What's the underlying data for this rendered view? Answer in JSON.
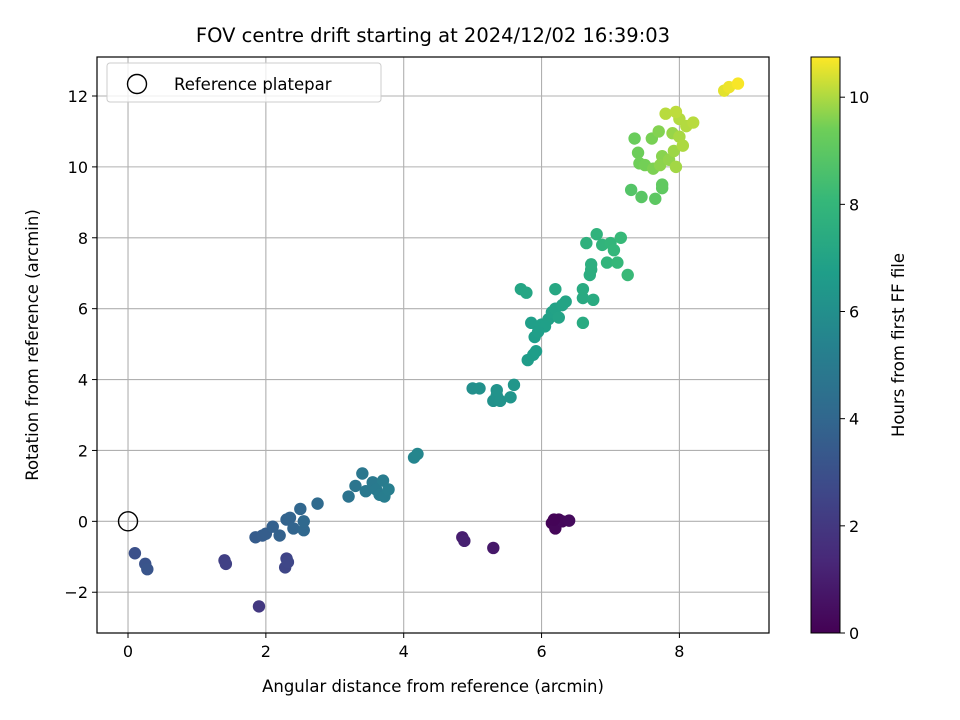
{
  "chart_data": {
    "type": "scatter",
    "title": "FOV centre drift starting at 2024/12/02 16:39:03",
    "xlabel": "Angular distance from reference (arcmin)",
    "ylabel": "Rotation from reference (arcmin)",
    "xlim": [
      -0.45,
      9.3
    ],
    "ylim": [
      -3.15,
      13.1
    ],
    "xticks": [
      0,
      2,
      4,
      6,
      8
    ],
    "yticks": [
      -2,
      0,
      2,
      4,
      6,
      8,
      10,
      12
    ],
    "xtick_labels": [
      "0",
      "2",
      "4",
      "6",
      "8"
    ],
    "ytick_labels": [
      "−2",
      "0",
      "2",
      "4",
      "6",
      "8",
      "10",
      "12"
    ],
    "grid": true,
    "colormap": "viridis",
    "colorbar": {
      "label": "Hours from first FF file",
      "min": 0,
      "max": 10.75,
      "ticks": [
        0,
        2,
        4,
        6,
        8,
        10
      ],
      "tick_labels": [
        "0",
        "2",
        "4",
        "6",
        "8",
        "10"
      ]
    },
    "legend": {
      "position": "upper left",
      "entries": [
        "Reference platepar"
      ]
    },
    "reference_point": {
      "x": 0,
      "y": 0,
      "label": "Reference platepar"
    },
    "series": [
      {
        "points": [
          {
            "x": 6.2,
            "y": 0.0,
            "t": 0.0
          },
          {
            "x": 6.15,
            "y": -0.05,
            "t": 0.1
          },
          {
            "x": 6.25,
            "y": 0.05,
            "t": 0.15
          },
          {
            "x": 6.2,
            "y": -0.2,
            "t": 0.2
          },
          {
            "x": 6.3,
            "y": 0.0,
            "t": 0.25
          },
          {
            "x": 6.4,
            "y": 0.02,
            "t": 0.3
          },
          {
            "x": 6.18,
            "y": 0.05,
            "t": 0.1
          },
          {
            "x": 5.3,
            "y": -0.75,
            "t": 0.8
          },
          {
            "x": 4.85,
            "y": -0.45,
            "t": 1.0
          },
          {
            "x": 4.88,
            "y": -0.55,
            "t": 1.1
          },
          {
            "x": 1.9,
            "y": -2.4,
            "t": 2.0
          },
          {
            "x": 1.4,
            "y": -1.1,
            "t": 2.3
          },
          {
            "x": 1.42,
            "y": -1.2,
            "t": 2.35
          },
          {
            "x": 2.3,
            "y": -1.05,
            "t": 2.5
          },
          {
            "x": 2.28,
            "y": -1.3,
            "t": 2.55
          },
          {
            "x": 2.32,
            "y": -1.15,
            "t": 2.6
          },
          {
            "x": 0.1,
            "y": -0.9,
            "t": 3.0
          },
          {
            "x": 0.25,
            "y": -1.2,
            "t": 3.1
          },
          {
            "x": 0.28,
            "y": -1.35,
            "t": 3.2
          },
          {
            "x": 1.85,
            "y": -0.45,
            "t": 3.5
          },
          {
            "x": 1.95,
            "y": -0.4,
            "t": 3.55
          },
          {
            "x": 2.0,
            "y": -0.35,
            "t": 3.6
          },
          {
            "x": 2.1,
            "y": -0.15,
            "t": 3.7
          },
          {
            "x": 2.2,
            "y": -0.4,
            "t": 3.75
          },
          {
            "x": 2.3,
            "y": 0.05,
            "t": 3.8
          },
          {
            "x": 2.35,
            "y": 0.1,
            "t": 3.85
          },
          {
            "x": 2.4,
            "y": -0.2,
            "t": 3.9
          },
          {
            "x": 2.5,
            "y": 0.35,
            "t": 4.0
          },
          {
            "x": 2.55,
            "y": -0.25,
            "t": 4.05
          },
          {
            "x": 2.55,
            "y": 0.0,
            "t": 4.1
          },
          {
            "x": 2.75,
            "y": 0.5,
            "t": 4.2
          },
          {
            "x": 3.2,
            "y": 0.7,
            "t": 4.6
          },
          {
            "x": 3.3,
            "y": 1.0,
            "t": 4.7
          },
          {
            "x": 3.4,
            "y": 1.35,
            "t": 4.8
          },
          {
            "x": 3.45,
            "y": 0.85,
            "t": 4.85
          },
          {
            "x": 3.55,
            "y": 1.1,
            "t": 4.9
          },
          {
            "x": 3.6,
            "y": 0.9,
            "t": 4.95
          },
          {
            "x": 3.65,
            "y": 0.75,
            "t": 5.0
          },
          {
            "x": 3.7,
            "y": 1.15,
            "t": 5.05
          },
          {
            "x": 3.72,
            "y": 0.7,
            "t": 5.1
          },
          {
            "x": 3.78,
            "y": 0.9,
            "t": 5.15
          },
          {
            "x": 4.15,
            "y": 1.8,
            "t": 5.5
          },
          {
            "x": 4.2,
            "y": 1.9,
            "t": 5.55
          },
          {
            "x": 5.0,
            "y": 3.75,
            "t": 6.0
          },
          {
            "x": 5.1,
            "y": 3.75,
            "t": 6.05
          },
          {
            "x": 5.3,
            "y": 3.4,
            "t": 6.1
          },
          {
            "x": 5.35,
            "y": 3.55,
            "t": 6.15
          },
          {
            "x": 5.4,
            "y": 3.4,
            "t": 6.2
          },
          {
            "x": 5.35,
            "y": 3.7,
            "t": 6.2
          },
          {
            "x": 5.55,
            "y": 3.5,
            "t": 6.3
          },
          {
            "x": 5.6,
            "y": 3.85,
            "t": 6.35
          },
          {
            "x": 5.8,
            "y": 4.55,
            "t": 6.6
          },
          {
            "x": 5.88,
            "y": 4.7,
            "t": 6.65
          },
          {
            "x": 5.92,
            "y": 4.8,
            "t": 6.7
          },
          {
            "x": 5.9,
            "y": 5.2,
            "t": 6.72
          },
          {
            "x": 5.85,
            "y": 5.6,
            "t": 6.75
          },
          {
            "x": 6.0,
            "y": 5.55,
            "t": 6.8
          },
          {
            "x": 6.1,
            "y": 5.7,
            "t": 6.85
          },
          {
            "x": 6.15,
            "y": 5.9,
            "t": 6.9
          },
          {
            "x": 6.2,
            "y": 6.0,
            "t": 6.95
          },
          {
            "x": 6.25,
            "y": 5.75,
            "t": 7.0
          },
          {
            "x": 6.3,
            "y": 6.1,
            "t": 7.0
          },
          {
            "x": 6.35,
            "y": 6.2,
            "t": 7.05
          },
          {
            "x": 6.05,
            "y": 5.5,
            "t": 6.8
          },
          {
            "x": 5.95,
            "y": 5.35,
            "t": 6.75
          },
          {
            "x": 5.7,
            "y": 6.55,
            "t": 7.1
          },
          {
            "x": 5.78,
            "y": 6.45,
            "t": 7.15
          },
          {
            "x": 6.2,
            "y": 6.55,
            "t": 7.2
          },
          {
            "x": 6.6,
            "y": 6.3,
            "t": 7.3
          },
          {
            "x": 6.6,
            "y": 6.55,
            "t": 7.35
          },
          {
            "x": 6.6,
            "y": 5.6,
            "t": 7.35
          },
          {
            "x": 6.75,
            "y": 6.25,
            "t": 7.4
          },
          {
            "x": 6.7,
            "y": 6.95,
            "t": 7.5
          },
          {
            "x": 6.72,
            "y": 7.1,
            "t": 7.55
          },
          {
            "x": 6.72,
            "y": 7.25,
            "t": 7.6
          },
          {
            "x": 6.65,
            "y": 7.85,
            "t": 7.7
          },
          {
            "x": 6.8,
            "y": 8.1,
            "t": 7.8
          },
          {
            "x": 6.88,
            "y": 7.8,
            "t": 7.85
          },
          {
            "x": 6.95,
            "y": 7.3,
            "t": 7.9
          },
          {
            "x": 7.0,
            "y": 7.85,
            "t": 7.95
          },
          {
            "x": 7.05,
            "y": 7.65,
            "t": 8.0
          },
          {
            "x": 7.1,
            "y": 7.3,
            "t": 8.05
          },
          {
            "x": 7.15,
            "y": 8.0,
            "t": 8.1
          },
          {
            "x": 7.25,
            "y": 6.95,
            "t": 8.15
          },
          {
            "x": 7.3,
            "y": 9.35,
            "t": 8.8
          },
          {
            "x": 7.45,
            "y": 9.15,
            "t": 8.9
          },
          {
            "x": 7.65,
            "y": 9.1,
            "t": 9.0
          },
          {
            "x": 7.75,
            "y": 9.4,
            "t": 9.05
          },
          {
            "x": 7.75,
            "y": 9.5,
            "t": 9.1
          },
          {
            "x": 7.35,
            "y": 10.8,
            "t": 9.3
          },
          {
            "x": 7.4,
            "y": 10.4,
            "t": 9.35
          },
          {
            "x": 7.42,
            "y": 10.1,
            "t": 9.4
          },
          {
            "x": 7.5,
            "y": 10.05,
            "t": 9.45
          },
          {
            "x": 7.6,
            "y": 10.8,
            "t": 9.5
          },
          {
            "x": 7.62,
            "y": 9.95,
            "t": 9.55
          },
          {
            "x": 7.7,
            "y": 11.0,
            "t": 9.6
          },
          {
            "x": 7.75,
            "y": 10.3,
            "t": 9.65
          },
          {
            "x": 7.72,
            "y": 10.05,
            "t": 9.7
          },
          {
            "x": 7.85,
            "y": 10.2,
            "t": 9.75
          },
          {
            "x": 7.9,
            "y": 10.95,
            "t": 9.8
          },
          {
            "x": 7.92,
            "y": 10.45,
            "t": 9.85
          },
          {
            "x": 7.95,
            "y": 10.0,
            "t": 9.9
          },
          {
            "x": 8.0,
            "y": 10.85,
            "t": 9.95
          },
          {
            "x": 8.05,
            "y": 10.6,
            "t": 10.0
          },
          {
            "x": 8.0,
            "y": 11.35,
            "t": 10.05
          },
          {
            "x": 8.1,
            "y": 11.15,
            "t": 10.05
          },
          {
            "x": 8.2,
            "y": 11.25,
            "t": 10.1
          },
          {
            "x": 7.8,
            "y": 11.5,
            "t": 10.1
          },
          {
            "x": 7.95,
            "y": 11.55,
            "t": 10.15
          },
          {
            "x": 8.65,
            "y": 12.15,
            "t": 10.5
          },
          {
            "x": 8.72,
            "y": 12.25,
            "t": 10.6
          },
          {
            "x": 8.85,
            "y": 12.35,
            "t": 10.7
          }
        ]
      }
    ]
  }
}
